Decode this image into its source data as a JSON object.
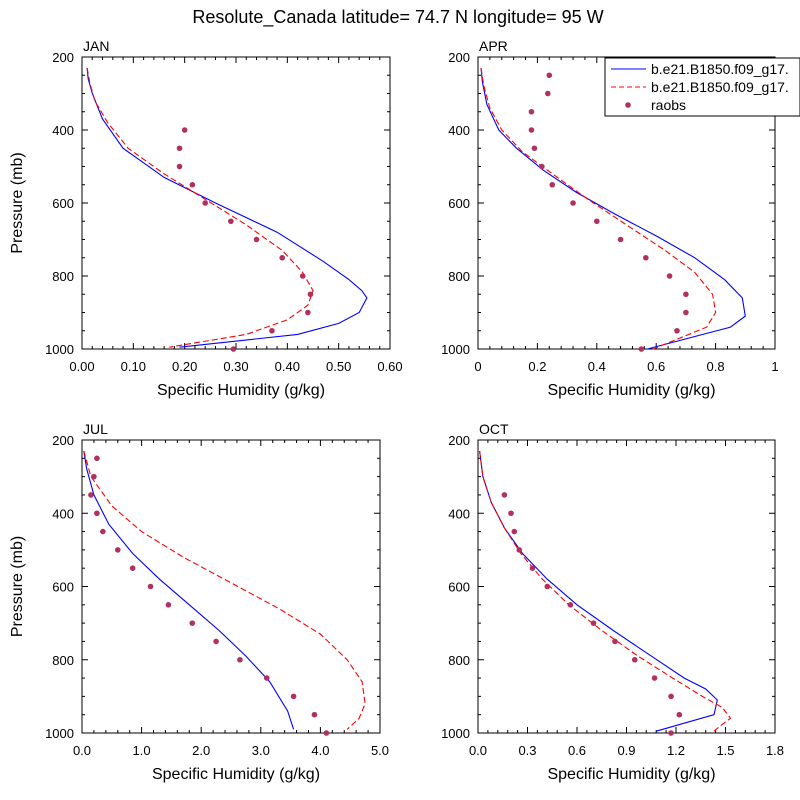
{
  "figure": {
    "title": "Resolute_Canada  latitude= 74.7 N longitude= 95 W"
  },
  "legend": {
    "position": "top-right",
    "entries": [
      {
        "label": "b.e21.B1850.f09_g17.",
        "style": "solid",
        "color": "#0000ff"
      },
      {
        "label": "b.e21.B1850.f09_g17.",
        "style": "dashed",
        "color": "#ff0000"
      },
      {
        "label": "raobs",
        "style": "marker",
        "color": "#b03060"
      }
    ]
  },
  "colors": {
    "model1": "#0000ff",
    "model2": "#ff0000",
    "obs": "#b03060"
  },
  "chart_data": [
    {
      "type": "line",
      "title": "JAN",
      "xlabel": "Specific Humidity (g/kg)",
      "ylabel": "Pressure (mb)",
      "xlim": [
        0,
        0.6
      ],
      "ylim": [
        1000,
        200
      ],
      "xticks": [
        "0.00",
        "0.10",
        "0.20",
        "0.30",
        "0.40",
        "0.50",
        "0.60"
      ],
      "yticks": [
        "200",
        "400",
        "600",
        "800",
        "1000"
      ],
      "series": [
        {
          "name": "b.e21.B1850.f09_g17.",
          "style": "solid",
          "x": [
            0.01,
            0.012,
            0.02,
            0.04,
            0.08,
            0.16,
            0.26,
            0.38,
            0.47,
            0.52,
            0.545,
            0.555,
            0.54,
            0.5,
            0.42,
            0.19
          ],
          "y": [
            230,
            260,
            300,
            370,
            450,
            530,
            600,
            680,
            760,
            810,
            840,
            860,
            900,
            930,
            960,
            995
          ]
        },
        {
          "name": "b.e21.B1850.f09_g17.",
          "style": "dashed",
          "x": [
            0.01,
            0.015,
            0.025,
            0.05,
            0.09,
            0.16,
            0.24,
            0.32,
            0.39,
            0.43,
            0.45,
            0.44,
            0.4,
            0.32,
            0.17
          ],
          "y": [
            230,
            270,
            320,
            380,
            450,
            520,
            590,
            660,
            730,
            790,
            840,
            880,
            920,
            960,
            995
          ]
        },
        {
          "name": "raobs",
          "style": "marker",
          "x": [
            0.2,
            0.19,
            0.19,
            0.215,
            0.24,
            0.29,
            0.34,
            0.39,
            0.43,
            0.445,
            0.44,
            0.37,
            0.295
          ],
          "y": [
            400,
            450,
            500,
            550,
            600,
            650,
            700,
            750,
            800,
            850,
            900,
            950,
            1000
          ]
        }
      ]
    },
    {
      "type": "line",
      "title": "APR",
      "xlabel": "Specific Humidity (g/kg)",
      "ylabel": "",
      "xlim": [
        0,
        1.0
      ],
      "ylim": [
        1000,
        200
      ],
      "xticks": [
        "0",
        "0.2",
        "0.4",
        "0.6",
        "0.8",
        "1"
      ],
      "yticks": [
        "200",
        "400",
        "600",
        "800",
        "1000"
      ],
      "series": [
        {
          "name": "b.e21.B1850.f09_g17.",
          "style": "solid",
          "x": [
            0.01,
            0.015,
            0.03,
            0.07,
            0.13,
            0.22,
            0.33,
            0.46,
            0.6,
            0.73,
            0.83,
            0.89,
            0.9,
            0.85,
            0.57
          ],
          "y": [
            230,
            270,
            330,
            400,
            450,
            510,
            570,
            630,
            690,
            750,
            810,
            860,
            910,
            940,
            1000
          ]
        },
        {
          "name": "b.e21.B1850.f09_g17.",
          "style": "dashed",
          "x": [
            0.01,
            0.02,
            0.04,
            0.08,
            0.15,
            0.25,
            0.37,
            0.5,
            0.63,
            0.73,
            0.79,
            0.8,
            0.77,
            0.59
          ],
          "y": [
            230,
            280,
            340,
            400,
            460,
            520,
            590,
            660,
            730,
            790,
            850,
            900,
            940,
            1000
          ]
        },
        {
          "name": "raobs",
          "style": "marker",
          "x": [
            0.24,
            0.235,
            0.18,
            0.18,
            0.19,
            0.215,
            0.25,
            0.32,
            0.4,
            0.48,
            0.565,
            0.645,
            0.7,
            0.7,
            0.67,
            0.55
          ],
          "y": [
            250,
            300,
            350,
            400,
            450,
            500,
            550,
            600,
            650,
            700,
            750,
            800,
            850,
            900,
            950,
            1000
          ]
        }
      ]
    },
    {
      "type": "line",
      "title": "JUL",
      "xlabel": "Specific Humidity (g/kg)",
      "ylabel": "Pressure (mb)",
      "xlim": [
        0,
        5.0
      ],
      "ylim": [
        1000,
        200
      ],
      "xticks": [
        "0.0",
        "1.0",
        "2.0",
        "3.0",
        "4.0",
        "5.0"
      ],
      "yticks": [
        "200",
        "400",
        "600",
        "800",
        "1000"
      ],
      "series": [
        {
          "name": "b.e21.B1850.f09_g17.",
          "style": "solid",
          "x": [
            0.03,
            0.08,
            0.2,
            0.45,
            0.85,
            1.3,
            1.8,
            2.3,
            2.75,
            3.15,
            3.45,
            3.55
          ],
          "y": [
            230,
            280,
            350,
            430,
            510,
            580,
            650,
            720,
            790,
            860,
            940,
            990
          ]
        },
        {
          "name": "b.e21.B1850.f09_g17.",
          "style": "dashed",
          "x": [
            0.03,
            0.15,
            0.5,
            1.0,
            1.7,
            2.5,
            3.3,
            4.0,
            4.45,
            4.7,
            4.75,
            4.65,
            4.45
          ],
          "y": [
            230,
            300,
            380,
            450,
            520,
            590,
            660,
            730,
            800,
            860,
            920,
            960,
            990
          ]
        },
        {
          "name": "raobs",
          "style": "marker",
          "x": [
            0.25,
            0.2,
            0.15,
            0.25,
            0.35,
            0.6,
            0.85,
            1.15,
            1.45,
            1.85,
            2.25,
            2.65,
            3.1,
            3.55,
            3.9,
            4.1
          ],
          "y": [
            250,
            300,
            350,
            400,
            450,
            500,
            550,
            600,
            650,
            700,
            750,
            800,
            850,
            900,
            950,
            1000
          ]
        }
      ]
    },
    {
      "type": "line",
      "title": "OCT",
      "xlabel": "Specific Humidity (g/kg)",
      "ylabel": "",
      "xlim": [
        0,
        1.8
      ],
      "ylim": [
        1000,
        200
      ],
      "xticks": [
        "0.0",
        "0.3",
        "0.6",
        "0.9",
        "1.2",
        "1.5",
        "1.8"
      ],
      "yticks": [
        "200",
        "400",
        "600",
        "800",
        "1000"
      ],
      "series": [
        {
          "name": "b.e21.B1850.f09_g17.",
          "style": "solid",
          "x": [
            0.01,
            0.03,
            0.08,
            0.16,
            0.27,
            0.42,
            0.6,
            0.82,
            1.05,
            1.25,
            1.38,
            1.45,
            1.43,
            1.08
          ],
          "y": [
            230,
            300,
            370,
            440,
            510,
            580,
            650,
            720,
            790,
            850,
            880,
            910,
            950,
            995
          ]
        },
        {
          "name": "b.e21.B1850.f09_g17.",
          "style": "dashed",
          "x": [
            0.01,
            0.03,
            0.08,
            0.16,
            0.26,
            0.39,
            0.55,
            0.75,
            0.97,
            1.18,
            1.36,
            1.48,
            1.53,
            1.47,
            1.43
          ],
          "y": [
            230,
            300,
            370,
            440,
            510,
            580,
            650,
            720,
            790,
            850,
            900,
            930,
            960,
            980,
            995
          ]
        },
        {
          "name": "raobs",
          "style": "marker",
          "x": [
            0.16,
            0.2,
            0.22,
            0.25,
            0.33,
            0.42,
            0.56,
            0.7,
            0.83,
            0.95,
            1.07,
            1.17,
            1.22,
            1.17
          ],
          "y": [
            350,
            400,
            450,
            500,
            550,
            600,
            650,
            700,
            750,
            800,
            850,
            900,
            950,
            1000
          ]
        }
      ]
    }
  ]
}
